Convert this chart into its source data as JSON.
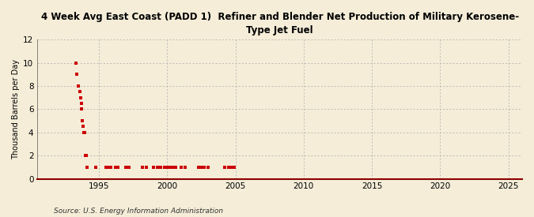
{
  "title": "4 Week Avg East Coast (PADD 1)  Refiner and Blender Net Production of Military Kerosene-\nType Jet Fuel",
  "ylabel": "Thousand Barrels per Day",
  "source": "Source: U.S. Energy Information Administration",
  "xlim": [
    1990.5,
    2026
  ],
  "ylim": [
    0,
    12
  ],
  "yticks": [
    0,
    2,
    4,
    6,
    8,
    10,
    12
  ],
  "xticks": [
    1995,
    2000,
    2005,
    2010,
    2015,
    2020,
    2025
  ],
  "background_color": "#f5edd8",
  "plot_background_color": "#f5edd8",
  "grid_color": "#aaaaaa",
  "line_color": "#8b0000",
  "marker_color": "#cc0000",
  "data_x": [
    1993.3,
    1993.4,
    1993.5,
    1993.6,
    1993.65,
    1993.7,
    1993.75,
    1993.8,
    1993.85,
    1993.9,
    1993.95,
    1994.0,
    1994.05,
    1994.1,
    1994.15,
    1994.8,
    1995.5,
    1995.7,
    1995.9,
    1996.2,
    1996.4,
    1997.0,
    1997.2,
    1998.2,
    1998.5,
    1999.0,
    1999.3,
    1999.5,
    1999.8,
    2000.0,
    2000.2,
    2000.4,
    2000.6,
    2001.0,
    2001.3,
    2002.3,
    2002.5,
    2002.7,
    2003.0,
    2004.2,
    2004.5,
    2004.7,
    2004.9
  ],
  "data_y": [
    10.0,
    9.0,
    8.0,
    7.5,
    7.0,
    6.5,
    6.0,
    5.0,
    4.5,
    4.0,
    4.0,
    2.0,
    2.0,
    2.0,
    1.0,
    1.0,
    1.0,
    1.0,
    1.0,
    1.0,
    1.0,
    1.0,
    1.0,
    1.0,
    1.0,
    1.0,
    1.0,
    1.0,
    1.0,
    1.0,
    1.0,
    1.0,
    1.0,
    1.0,
    1.0,
    1.0,
    1.0,
    1.0,
    1.0,
    1.0,
    1.0,
    1.0,
    1.0
  ],
  "zero_line_x": [
    1990.5,
    2026
  ],
  "zero_line_y": [
    0,
    0
  ]
}
